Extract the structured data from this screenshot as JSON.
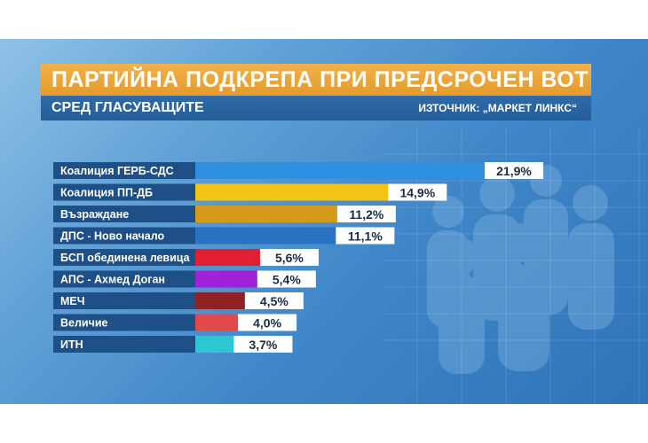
{
  "title": "ПАРТИЙНА ПОДКРЕПА ПРИ ПРЕДСРОЧЕН ВОТ",
  "subtitle": "СРЕД ГЛАСУВАЩИТЕ",
  "source": "ИЗТОЧНИК: „МАРКЕТ ЛИНКС“",
  "colors": {
    "title_bg": "#e8a232",
    "subtitle_bg": "#2a64a2",
    "label_bg": "#1e4f86",
    "value_bg": "#ffffff"
  },
  "chart_data": {
    "type": "bar",
    "orientation": "horizontal",
    "title": "ПАРТИЙНА ПОДКРЕПА ПРИ ПРЕДСРОЧЕН ВОТ",
    "subtitle": "СРЕД ГЛАСУВАЩИТЕ",
    "categories": [
      "Коалиция ГЕРБ-СДС",
      "Коалиция ПП-ДБ",
      "Възраждане",
      "ДПС - Ново начало",
      "БСП обединена левица",
      "АПС - Ахмед Доган",
      "МЕЧ",
      "Величие",
      "ИТН"
    ],
    "values": [
      21.9,
      14.9,
      11.2,
      11.1,
      5.6,
      5.4,
      4.5,
      4.0,
      3.7
    ],
    "value_labels": [
      "21,9%",
      "14,9%",
      "11,2%",
      "11,1%",
      "5,6%",
      "5,4%",
      "4,5%",
      "4,0%",
      "3,7%"
    ],
    "colors": [
      "#2f8fe0",
      "#f2c417",
      "#d59a1c",
      "#2a72c4",
      "#e21f30",
      "#a022d6",
      "#8f2222",
      "#e04a4a",
      "#2fc6d4"
    ],
    "unit": "%",
    "xlim": [
      0,
      21.9
    ],
    "grid": false,
    "legend": "none"
  }
}
